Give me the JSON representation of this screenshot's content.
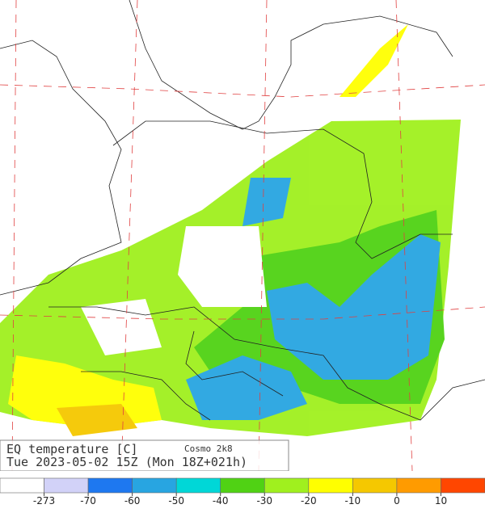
{
  "header": {
    "title": "EQ temperature [C]",
    "model": "Cosmo 2k8",
    "time": "Tue 2023-05-02 15Z (Mon 18Z+021h)"
  },
  "colorbar": {
    "colors": [
      "#ffffff",
      "#d2d2f8",
      "#1e78f0",
      "#28a5e1",
      "#00d7d7",
      "#50d214",
      "#a0f01e",
      "#ffff00",
      "#f5c800",
      "#ff9b00",
      "#ff4600"
    ],
    "labels": [
      "-273",
      "-70",
      "-60",
      "-50",
      "-40",
      "-30",
      "-20",
      "-10",
      "0",
      "10"
    ]
  }
}
